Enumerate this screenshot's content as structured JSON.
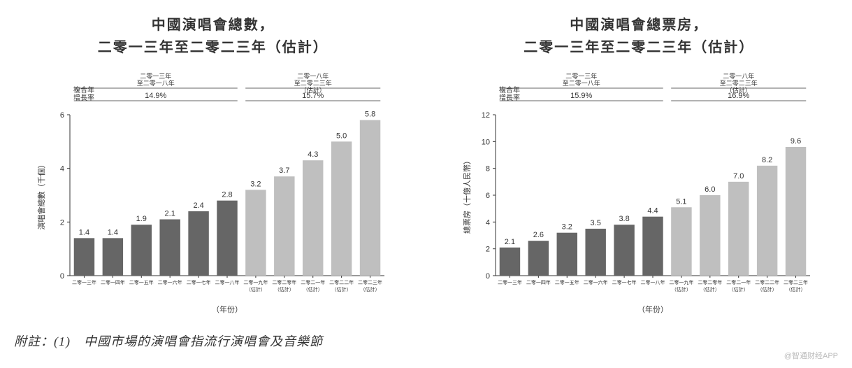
{
  "charts": [
    {
      "title_line1": "中國演唱會總數，",
      "title_line2": "二零一三年至二零二三年（估計）",
      "type": "bar",
      "ylabel": "演唱會總數（千個）",
      "xlabel": "（年份）",
      "ylim": [
        0,
        6
      ],
      "ytick_step": 2,
      "categories": [
        "二零一三年",
        "二零一四年",
        "二零一五年",
        "二零一六年",
        "二零一七年",
        "二零一八年",
        "二零一九年\n（估計）",
        "二零二零年\n（估計）",
        "二零二一年\n（估計）",
        "二零二二年\n（估計）",
        "二零二三年\n（估計）"
      ],
      "values": [
        1.4,
        1.4,
        1.9,
        2.1,
        2.4,
        2.8,
        3.2,
        3.7,
        4.3,
        5.0,
        5.8
      ],
      "bar_colors": [
        "#666666",
        "#666666",
        "#666666",
        "#666666",
        "#666666",
        "#666666",
        "#bfbfbf",
        "#bfbfbf",
        "#bfbfbf",
        "#bfbfbf",
        "#bfbfbf"
      ],
      "cagr_label": "複合年\n增長率",
      "cagr_segments": [
        {
          "label": "二零一三年\n至二零一八年",
          "value": "14.9%",
          "span": [
            0,
            5
          ]
        },
        {
          "label": "二零一八年\n至二零二三年\n（估計）",
          "value": "15.7%",
          "span": [
            6,
            10
          ]
        }
      ],
      "value_fontsize": 11,
      "axis_fontsize": 9,
      "title_fontsize": 20,
      "label_fontsize": 11,
      "background_color": "#ffffff",
      "axis_color": "#333333",
      "text_color": "#333333"
    },
    {
      "title_line1": "中國演唱會總票房，",
      "title_line2": "二零一三年至二零二三年（估計）",
      "type": "bar",
      "ylabel": "總票房（十億人民幣）",
      "xlabel": "（年份）",
      "ylim": [
        0,
        12
      ],
      "ytick_step": 2,
      "categories": [
        "二零一三年",
        "二零一四年",
        "二零一五年",
        "二零一六年",
        "二零一七年",
        "二零一八年",
        "二零一九年\n（估計）",
        "二零二零年\n（估計）",
        "二零二一年\n（估計）",
        "二零二二年\n（估計）",
        "二零二三年\n（估計）"
      ],
      "values": [
        2.1,
        2.6,
        3.2,
        3.5,
        3.8,
        4.4,
        5.1,
        6.0,
        7.0,
        8.2,
        9.6
      ],
      "bar_colors": [
        "#666666",
        "#666666",
        "#666666",
        "#666666",
        "#666666",
        "#666666",
        "#bfbfbf",
        "#bfbfbf",
        "#bfbfbf",
        "#bfbfbf",
        "#bfbfbf"
      ],
      "cagr_label": "複合年\n增長率",
      "cagr_segments": [
        {
          "label": "二零一三年\n至二零一八年",
          "value": "15.9%",
          "span": [
            0,
            5
          ]
        },
        {
          "label": "二零一八年\n至二零二三年\n（估計）",
          "value": "16.9%",
          "span": [
            6,
            10
          ]
        }
      ],
      "value_fontsize": 11,
      "axis_fontsize": 9,
      "title_fontsize": 20,
      "label_fontsize": 11,
      "background_color": "#ffffff",
      "axis_color": "#333333",
      "text_color": "#333333"
    }
  ],
  "footnote": "附註：(1)　中國市場的演唱會指流行演唱會及音樂節",
  "watermark": "@智通财经APP"
}
